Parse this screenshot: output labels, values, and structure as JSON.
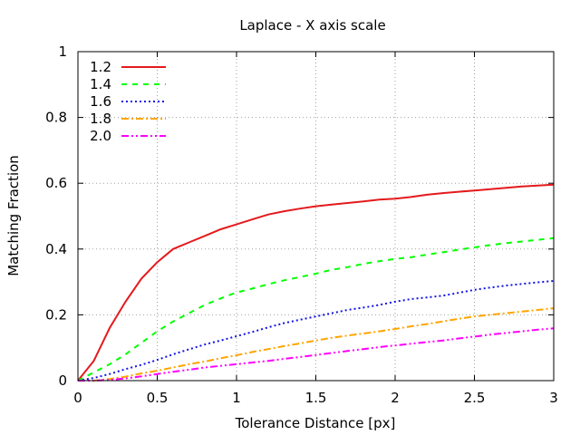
{
  "chart_data": {
    "type": "line",
    "title": "Laplace - X axis scale",
    "xlabel": "Tolerance Distance [px]",
    "ylabel": "Matching Fraction",
    "xlim": [
      0,
      3
    ],
    "ylim": [
      0,
      1
    ],
    "grid": true,
    "legend_position": "top-left",
    "x_ticks": [
      0,
      0.5,
      1,
      1.5,
      2,
      2.5,
      3
    ],
    "x_tick_labels": [
      "0",
      "0.5",
      "1",
      "1.5",
      "2",
      "2.5",
      "3"
    ],
    "y_ticks": [
      0,
      0.2,
      0.4,
      0.6,
      0.8,
      1
    ],
    "y_tick_labels": [
      "0",
      "0.2",
      "0.4",
      "0.6",
      "0.8",
      "1"
    ],
    "series": [
      {
        "name": "1.2",
        "color": "#e41a1c",
        "dash": "solid",
        "x": [
          0,
          0.1,
          0.2,
          0.3,
          0.4,
          0.5,
          0.6,
          0.7,
          0.8,
          0.9,
          1.0,
          1.1,
          1.2,
          1.3,
          1.4,
          1.5,
          1.6,
          1.7,
          1.8,
          1.9,
          2.0,
          2.1,
          2.2,
          2.3,
          2.4,
          2.5,
          2.6,
          2.7,
          2.8,
          2.9,
          3.0
        ],
        "y": [
          0,
          0.06,
          0.16,
          0.24,
          0.31,
          0.36,
          0.4,
          0.42,
          0.44,
          0.46,
          0.475,
          0.49,
          0.505,
          0.515,
          0.523,
          0.53,
          0.535,
          0.54,
          0.545,
          0.55,
          0.553,
          0.558,
          0.565,
          0.57,
          0.574,
          0.578,
          0.582,
          0.586,
          0.59,
          0.593,
          0.596
        ]
      },
      {
        "name": "1.4",
        "color": "#00ff00",
        "dash": "6 6",
        "x": [
          0,
          0.1,
          0.2,
          0.3,
          0.4,
          0.5,
          0.6,
          0.7,
          0.8,
          0.9,
          1.0,
          1.1,
          1.2,
          1.3,
          1.4,
          1.5,
          1.6,
          1.7,
          1.8,
          1.9,
          2.0,
          2.1,
          2.2,
          2.3,
          2.4,
          2.5,
          2.6,
          2.7,
          2.8,
          2.9,
          3.0
        ],
        "y": [
          0,
          0.025,
          0.05,
          0.08,
          0.115,
          0.15,
          0.18,
          0.205,
          0.23,
          0.25,
          0.268,
          0.28,
          0.293,
          0.305,
          0.315,
          0.325,
          0.337,
          0.345,
          0.355,
          0.363,
          0.37,
          0.375,
          0.383,
          0.39,
          0.398,
          0.405,
          0.412,
          0.418,
          0.423,
          0.428,
          0.433
        ]
      },
      {
        "name": "1.6",
        "color": "#1414e6",
        "dash": "2 3",
        "x": [
          0,
          0.1,
          0.2,
          0.3,
          0.4,
          0.5,
          0.6,
          0.7,
          0.8,
          0.9,
          1.0,
          1.1,
          1.2,
          1.3,
          1.4,
          1.5,
          1.6,
          1.7,
          1.8,
          1.9,
          2.0,
          2.1,
          2.2,
          2.3,
          2.4,
          2.5,
          2.6,
          2.7,
          2.8,
          2.9,
          3.0
        ],
        "y": [
          0,
          0.008,
          0.02,
          0.035,
          0.048,
          0.063,
          0.08,
          0.095,
          0.11,
          0.122,
          0.135,
          0.148,
          0.162,
          0.175,
          0.185,
          0.195,
          0.205,
          0.215,
          0.222,
          0.23,
          0.24,
          0.248,
          0.253,
          0.258,
          0.267,
          0.276,
          0.283,
          0.289,
          0.294,
          0.299,
          0.303
        ]
      },
      {
        "name": "1.8",
        "color": "#ffa500",
        "dash": "8 3 2 3",
        "x": [
          0,
          0.1,
          0.2,
          0.3,
          0.4,
          0.5,
          0.6,
          0.7,
          0.8,
          0.9,
          1.0,
          1.1,
          1.2,
          1.3,
          1.4,
          1.5,
          1.6,
          1.7,
          1.8,
          1.9,
          2.0,
          2.1,
          2.2,
          2.3,
          2.4,
          2.5,
          2.6,
          2.7,
          2.8,
          2.9,
          3.0
        ],
        "y": [
          0,
          0.0,
          0.005,
          0.012,
          0.022,
          0.03,
          0.04,
          0.05,
          0.058,
          0.068,
          0.077,
          0.087,
          0.096,
          0.105,
          0.113,
          0.122,
          0.13,
          0.137,
          0.143,
          0.15,
          0.157,
          0.165,
          0.172,
          0.18,
          0.188,
          0.195,
          0.2,
          0.205,
          0.21,
          0.215,
          0.22
        ]
      },
      {
        "name": "2.0",
        "color": "#ff00ff",
        "dash": "8 3 2 3 2 3",
        "x": [
          0,
          0.1,
          0.2,
          0.3,
          0.4,
          0.5,
          0.6,
          0.7,
          0.8,
          0.9,
          1.0,
          1.1,
          1.2,
          1.3,
          1.4,
          1.5,
          1.6,
          1.7,
          1.8,
          1.9,
          2.0,
          2.1,
          2.2,
          2.3,
          2.4,
          2.5,
          2.6,
          2.7,
          2.8,
          2.9,
          3.0
        ],
        "y": [
          0,
          0.0,
          0.002,
          0.007,
          0.013,
          0.02,
          0.027,
          0.033,
          0.04,
          0.045,
          0.05,
          0.055,
          0.06,
          0.066,
          0.072,
          0.078,
          0.084,
          0.09,
          0.096,
          0.102,
          0.107,
          0.112,
          0.117,
          0.122,
          0.128,
          0.134,
          0.14,
          0.145,
          0.15,
          0.155,
          0.159
        ]
      }
    ]
  }
}
